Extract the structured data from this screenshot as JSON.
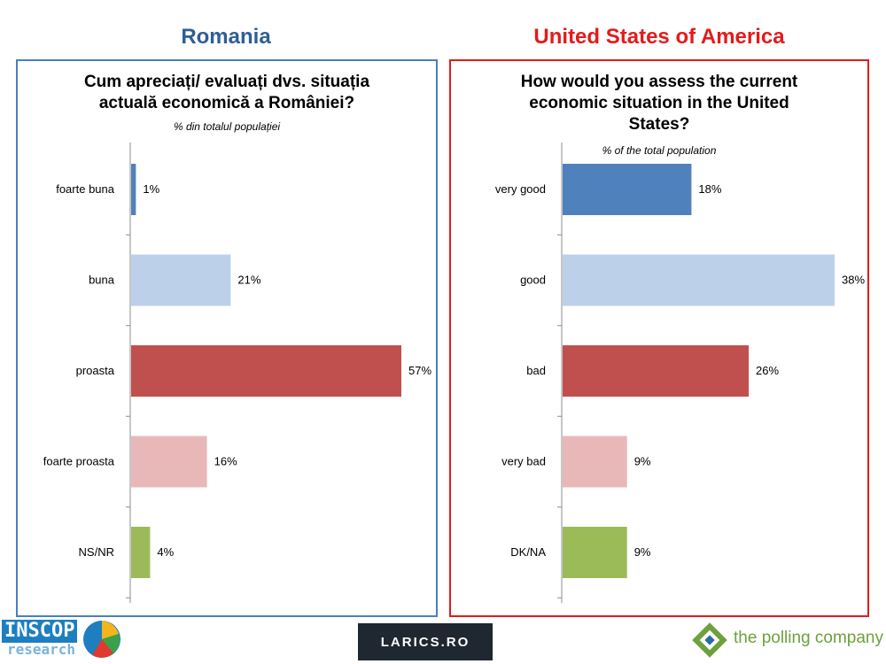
{
  "header": {
    "left_country": "Romania",
    "right_country": "United States of America"
  },
  "chart_data": [
    {
      "type": "bar",
      "orientation": "horizontal",
      "title": "Cum apreciați/ evaluați dvs. situația actuală economică a României?",
      "title_lines": [
        "Cum apreciați/ evaluați dvs. situația",
        "actuală economică a României?"
      ],
      "subtitle": "% din totalul populației",
      "categories": [
        "foarte buna",
        "buna",
        "proasta",
        "foarte proasta",
        "NS/NR"
      ],
      "values": [
        1,
        21,
        57,
        16,
        4
      ],
      "data_labels": [
        "1%",
        "21%",
        "57%",
        "16%",
        "4%"
      ],
      "colors": [
        "#4f81bd",
        "#bcd0ea",
        "#c0504d",
        "#e8b8b8",
        "#9bbb59"
      ],
      "xlim": [
        0,
        57
      ],
      "grid": false,
      "legend": "none"
    },
    {
      "type": "bar",
      "orientation": "horizontal",
      "title": "How would you assess the current economic situation in the United States?",
      "title_lines": [
        "How would you assess the current",
        "economic situation in the United",
        "States?"
      ],
      "subtitle": "% of the total population",
      "categories": [
        "very good",
        "good",
        "bad",
        "very bad",
        "DK/NA"
      ],
      "values": [
        18,
        38,
        26,
        9,
        9
      ],
      "data_labels": [
        "18%",
        "38%",
        "26%",
        "9%",
        "9%"
      ],
      "colors": [
        "#4f81bd",
        "#bcd0ea",
        "#c0504d",
        "#e8b8b8",
        "#9bbb59"
      ],
      "xlim": [
        0,
        38
      ],
      "grid": false,
      "legend": "none"
    }
  ],
  "logos": {
    "left": "INSCOP",
    "left_sub": "research",
    "center": "LARICS.RO",
    "right": "the polling company"
  }
}
